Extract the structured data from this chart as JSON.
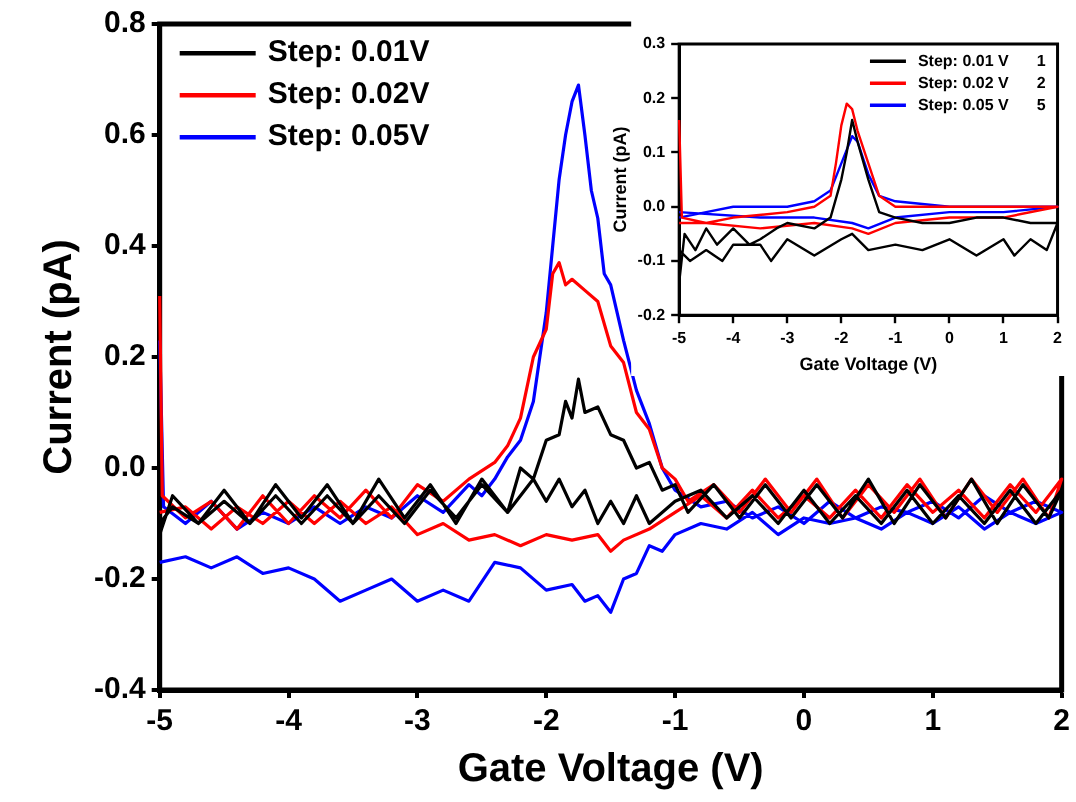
{
  "chart_data": [
    {
      "type": "line",
      "xlabel": "Gate Voltage (V)",
      "ylabel": "Current (pA)",
      "xlim": [
        -5,
        2
      ],
      "xticks": [
        -5,
        -4,
        -3,
        -2,
        -1,
        0,
        1,
        2
      ],
      "ylim": [
        -0.4,
        0.8
      ],
      "yticks": [
        -0.4,
        -0.2,
        {
          "value": 0,
          "label": "0.0"
        },
        0.2,
        0.4,
        0.6,
        0.8
      ],
      "grid": false,
      "legend": "top left",
      "marker": "none",
      "line_style": "solid",
      "series": [
        {
          "name": "Step: 0.01V",
          "color": "#000000",
          "x": [
            -5,
            -4.9,
            -4.7,
            -4.5,
            -4.3,
            -4.1,
            -3.9,
            -3.7,
            -3.5,
            -3.3,
            -3.1,
            -2.9,
            -2.7,
            -2.5,
            -2.3,
            -2.2,
            -2.1,
            -2.0,
            -1.9,
            -1.85,
            -1.8,
            -1.75,
            -1.7,
            -1.6,
            -1.5,
            -1.4,
            -1.3,
            -1.2,
            -1.1,
            -1.0,
            -0.9,
            -0.7,
            -0.5,
            -0.3,
            -0.1,
            0.1,
            0.3,
            0.5,
            0.7,
            0.9,
            1.1,
            1.3,
            1.5,
            1.7,
            1.9,
            2,
            1.8,
            1.6,
            1.4,
            1.2,
            1.0,
            0.8,
            0.6,
            0.4,
            0.2,
            0,
            -0.2,
            -0.4,
            -0.6,
            -0.8,
            -1.0,
            -1.2,
            -1.3,
            -1.4,
            -1.5,
            -1.6,
            -1.7,
            -1.8,
            -1.9,
            -2.0,
            -2.1,
            -2.3,
            -2.5,
            -2.7,
            -2.9,
            -3.1,
            -3.3,
            -3.5,
            -3.7,
            -3.9,
            -4.1,
            -4.3,
            -4.5,
            -4.7,
            -4.9,
            -5
          ],
          "values": [
            -0.12,
            -0.05,
            -0.1,
            -0.04,
            -0.1,
            -0.03,
            -0.09,
            -0.03,
            -0.1,
            -0.02,
            -0.09,
            -0.03,
            -0.1,
            -0.02,
            -0.08,
            0.0,
            -0.02,
            0.05,
            0.06,
            0.12,
            0.09,
            0.16,
            0.1,
            0.11,
            0.06,
            0.05,
            0.0,
            0.01,
            -0.04,
            -0.03,
            -0.08,
            -0.03,
            -0.09,
            -0.03,
            -0.09,
            -0.03,
            -0.09,
            -0.02,
            -0.1,
            -0.03,
            -0.09,
            -0.02,
            -0.1,
            -0.03,
            -0.09,
            -0.04,
            -0.1,
            -0.04,
            -0.1,
            -0.05,
            -0.1,
            -0.04,
            -0.1,
            -0.05,
            -0.1,
            -0.04,
            -0.1,
            -0.05,
            -0.09,
            -0.04,
            -0.06,
            -0.1,
            -0.05,
            -0.1,
            -0.06,
            -0.1,
            -0.04,
            -0.07,
            -0.02,
            -0.06,
            -0.02,
            -0.08,
            -0.03,
            -0.09,
            -0.04,
            -0.1,
            -0.05,
            -0.1,
            -0.05,
            -0.1,
            -0.05,
            -0.1,
            -0.06,
            -0.1,
            -0.07,
            -0.1
          ]
        },
        {
          "name": "Step: 0.02V",
          "color": "#ff0000",
          "x": [
            -5,
            -4.98,
            -4.8,
            -4.6,
            -4.4,
            -4.2,
            -4.0,
            -3.8,
            -3.6,
            -3.4,
            -3.2,
            -3.0,
            -2.8,
            -2.6,
            -2.4,
            -2.3,
            -2.2,
            -2.1,
            -2.0,
            -1.95,
            -1.9,
            -1.85,
            -1.8,
            -1.7,
            -1.6,
            -1.5,
            -1.4,
            -1.3,
            -1.2,
            -1.1,
            -1.0,
            -0.9,
            -0.7,
            -0.5,
            -0.3,
            -0.1,
            0.1,
            0.3,
            0.5,
            0.7,
            0.9,
            1.1,
            1.3,
            1.5,
            1.7,
            1.9,
            2,
            1.8,
            1.6,
            1.4,
            1.2,
            1.0,
            0.8,
            0.6,
            0.4,
            0.2,
            0,
            -0.2,
            -0.4,
            -0.6,
            -0.8,
            -1.0,
            -1.2,
            -1.4,
            -1.5,
            -1.6,
            -1.8,
            -2.0,
            -2.2,
            -2.4,
            -2.6,
            -2.8,
            -3.0,
            -3.2,
            -3.4,
            -3.6,
            -3.8,
            -4.0,
            -4.2,
            -4.4,
            -4.6,
            -4.8,
            -5
          ],
          "values": [
            0.31,
            -0.05,
            -0.09,
            -0.06,
            -0.11,
            -0.05,
            -0.1,
            -0.05,
            -0.09,
            -0.04,
            -0.09,
            -0.03,
            -0.06,
            -0.02,
            0.01,
            0.04,
            0.09,
            0.2,
            0.25,
            0.35,
            0.37,
            0.33,
            0.34,
            0.32,
            0.3,
            0.22,
            0.19,
            0.1,
            0.07,
            0.0,
            -0.02,
            -0.06,
            -0.03,
            -0.08,
            -0.02,
            -0.08,
            -0.02,
            -0.09,
            -0.03,
            -0.08,
            -0.02,
            -0.09,
            -0.02,
            -0.08,
            -0.02,
            -0.09,
            -0.02,
            -0.08,
            -0.03,
            -0.09,
            -0.04,
            -0.08,
            -0.03,
            -0.09,
            -0.04,
            -0.09,
            -0.05,
            -0.09,
            -0.04,
            -0.09,
            -0.05,
            -0.08,
            -0.11,
            -0.13,
            -0.15,
            -0.12,
            -0.13,
            -0.12,
            -0.14,
            -0.12,
            -0.13,
            -0.1,
            -0.12,
            -0.07,
            -0.1,
            -0.06,
            -0.1,
            -0.06,
            -0.1,
            -0.07,
            -0.11,
            -0.07,
            -0.08
          ]
        },
        {
          "name": "Step: 0.05V",
          "color": "#0000ff",
          "x": [
            -5,
            -4.97,
            -4.8,
            -4.6,
            -4.4,
            -4.2,
            -4.0,
            -3.8,
            -3.6,
            -3.4,
            -3.2,
            -3.0,
            -2.8,
            -2.6,
            -2.5,
            -2.4,
            -2.3,
            -2.2,
            -2.1,
            -2.0,
            -1.95,
            -1.9,
            -1.85,
            -1.8,
            -1.75,
            -1.7,
            -1.65,
            -1.6,
            -1.55,
            -1.5,
            -1.4,
            -1.3,
            -1.2,
            -1.1,
            -1.0,
            -0.8,
            -0.6,
            -0.4,
            -0.2,
            0,
            0.2,
            0.4,
            0.6,
            0.8,
            1.0,
            1.2,
            1.4,
            1.6,
            1.8,
            2,
            1.8,
            1.6,
            1.4,
            1.2,
            1.0,
            0.8,
            0.6,
            0.4,
            0.2,
            0,
            -0.2,
            -0.4,
            -0.6,
            -0.8,
            -1.0,
            -1.1,
            -1.2,
            -1.3,
            -1.4,
            -1.5,
            -1.6,
            -1.7,
            -1.8,
            -2.0,
            -2.2,
            -2.4,
            -2.6,
            -2.8,
            -3.0,
            -3.2,
            -3.4,
            -3.6,
            -3.8,
            -4.0,
            -4.2,
            -4.4,
            -4.6,
            -4.8,
            -5
          ],
          "values": [
            0.23,
            -0.07,
            -0.1,
            -0.06,
            -0.11,
            -0.08,
            -0.1,
            -0.07,
            -0.1,
            -0.07,
            -0.09,
            -0.05,
            -0.08,
            -0.03,
            -0.05,
            -0.02,
            0.02,
            0.05,
            0.12,
            0.28,
            0.4,
            0.52,
            0.6,
            0.66,
            0.69,
            0.6,
            0.5,
            0.45,
            0.35,
            0.33,
            0.23,
            0.14,
            0.08,
            0.0,
            -0.04,
            -0.07,
            -0.06,
            -0.09,
            -0.07,
            -0.1,
            -0.06,
            -0.09,
            -0.07,
            -0.08,
            -0.06,
            -0.09,
            -0.05,
            -0.08,
            -0.06,
            -0.08,
            -0.1,
            -0.08,
            -0.11,
            -0.07,
            -0.1,
            -0.08,
            -0.11,
            -0.09,
            -0.1,
            -0.09,
            -0.12,
            -0.08,
            -0.11,
            -0.1,
            -0.12,
            -0.15,
            -0.14,
            -0.19,
            -0.2,
            -0.26,
            -0.23,
            -0.24,
            -0.21,
            -0.22,
            -0.18,
            -0.17,
            -0.24,
            -0.22,
            -0.24,
            -0.2,
            -0.22,
            -0.24,
            -0.2,
            -0.18,
            -0.19,
            -0.16,
            -0.18,
            -0.16,
            -0.17
          ]
        }
      ]
    },
    {
      "type": "line",
      "xlabel": "Gate Voltage (V)",
      "ylabel": "Current (pA)",
      "xlim": [
        -5,
        2
      ],
      "xticks": [
        -5,
        -4,
        -3,
        -2,
        -1,
        0,
        1,
        2
      ],
      "ylim": [
        -0.2,
        0.3
      ],
      "yticks": [
        -0.2,
        -0.1,
        {
          "value": 0,
          "label": "0.0"
        },
        0.1,
        0.2,
        0.3
      ],
      "grid": false,
      "legend": "top right",
      "marker": "none",
      "line_style": "solid",
      "annotations": [
        "1",
        "2",
        "5"
      ],
      "series": [
        {
          "name": "Step: 0.01 V",
          "color": "#000000",
          "x": [
            -5,
            -4.9,
            -4.7,
            -4.5,
            -4.3,
            -4,
            -3.7,
            -3.5,
            -3.2,
            -3,
            -2.5,
            -2.2,
            -2,
            -1.9,
            -1.8,
            -1.7,
            -1.5,
            -1.3,
            -1,
            -0.5,
            0,
            0.5,
            1,
            1.5,
            2,
            1.8,
            1.5,
            1.2,
            1,
            0.5,
            0,
            -0.5,
            -1,
            -1.5,
            -1.8,
            -2,
            -2.5,
            -3,
            -3.3,
            -3.5,
            -4,
            -4.2,
            -4.5,
            -4.8,
            -5
          ],
          "values": [
            -0.14,
            -0.05,
            -0.08,
            -0.04,
            -0.07,
            -0.04,
            -0.07,
            -0.06,
            -0.04,
            -0.03,
            -0.04,
            -0.02,
            0.05,
            0.1,
            0.16,
            0.12,
            0.05,
            -0.01,
            -0.02,
            -0.03,
            -0.03,
            -0.02,
            -0.02,
            -0.03,
            -0.03,
            -0.08,
            -0.06,
            -0.09,
            -0.06,
            -0.09,
            -0.06,
            -0.08,
            -0.07,
            -0.08,
            -0.05,
            -0.06,
            -0.09,
            -0.06,
            -0.1,
            -0.07,
            -0.07,
            -0.1,
            -0.08,
            -0.1,
            -0.08
          ]
        },
        {
          "name": "Step: 0.02 V",
          "color": "#ff0000",
          "x": [
            -5,
            -4.95,
            -4.5,
            -4,
            -3,
            -2.5,
            -2.2,
            -2.1,
            -2,
            -1.9,
            -1.8,
            -1.7,
            -1.5,
            -1.3,
            -1,
            0,
            1,
            2,
            1,
            0,
            -1,
            -1.5,
            -1.8,
            -2.5,
            -3.5,
            -4.5,
            -5
          ],
          "values": [
            0.16,
            -0.02,
            -0.03,
            -0.02,
            -0.01,
            0.0,
            0.02,
            0.08,
            0.15,
            0.19,
            0.18,
            0.14,
            0.08,
            0.02,
            0.0,
            0.0,
            0.0,
            0.0,
            -0.02,
            -0.02,
            -0.03,
            -0.05,
            -0.04,
            -0.03,
            -0.04,
            -0.03,
            -0.03
          ]
        },
        {
          "name": "Step: 0.05 V",
          "color": "#0000ff",
          "x": [
            -5,
            -4.5,
            -4,
            -3,
            -2.5,
            -2.2,
            -2,
            -1.8,
            -1.7,
            -1.5,
            -1.3,
            -1,
            0,
            1,
            2,
            1,
            0,
            -1,
            -1.5,
            -1.8,
            -2.5,
            -3.5,
            -5
          ],
          "values": [
            -0.02,
            -0.01,
            0.0,
            0.0,
            0.01,
            0.03,
            0.08,
            0.13,
            0.12,
            0.06,
            0.02,
            0.01,
            0.0,
            0.0,
            0.0,
            -0.01,
            -0.01,
            -0.02,
            -0.04,
            -0.03,
            -0.02,
            -0.02,
            -0.01
          ]
        }
      ]
    }
  ]
}
